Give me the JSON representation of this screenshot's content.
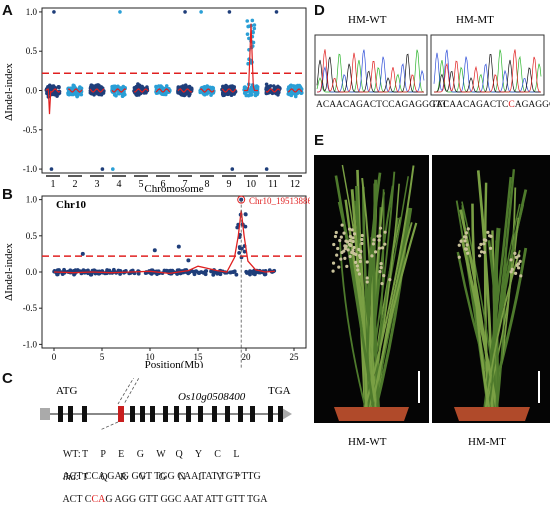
{
  "panels": {
    "A": "A",
    "B": "B",
    "C": "C",
    "D": "D",
    "E": "E"
  },
  "panelA": {
    "ylabel": "ΔIndel-index",
    "xlabel": "Chromosome",
    "yticks": [
      "1.0",
      "0.5",
      "0.0",
      "-0.5",
      "-1.0"
    ],
    "chromosomes": [
      "1",
      "2",
      "3",
      "4",
      "5",
      "6",
      "7",
      "8",
      "9",
      "10",
      "11",
      "12"
    ],
    "threshold": 0.22,
    "colors": {
      "dark": "#1f3e7a",
      "light": "#2a9fd6",
      "line": "#e02020"
    }
  },
  "panelB": {
    "title": "Chr10",
    "peak_label": "Chr10_19513886",
    "ylabel": "ΔIndel-index",
    "xlabel": "Position(Mb)",
    "yticks": [
      "1.0",
      "0.5",
      "0.0",
      "-0.5",
      "-1.0"
    ],
    "xticks": [
      "0",
      "5",
      "10",
      "15",
      "20",
      "25"
    ],
    "threshold": 0.22,
    "peak_position_mb": 19.5
  },
  "chart_data": [
    {
      "type": "scatter",
      "panel": "A",
      "xlabel": "Chromosome",
      "ylabel": "ΔIndel-index",
      "ylim": [
        -1.05,
        1.05
      ],
      "categories": [
        "1",
        "2",
        "3",
        "4",
        "5",
        "6",
        "7",
        "8",
        "9",
        "10",
        "11",
        "12"
      ],
      "threshold": 0.22,
      "peak": {
        "chromosome": "10",
        "value": 0.85
      }
    },
    {
      "type": "scatter",
      "panel": "B",
      "title": "Chr10",
      "xlabel": "Position(Mb)",
      "ylabel": "ΔIndel-index",
      "xlim": [
        0,
        25
      ],
      "ylim": [
        -1.05,
        1.05
      ],
      "threshold": 0.22,
      "annotations": [
        {
          "text": "Chr10_19513886",
          "x": 19.5,
          "y": 1.0
        }
      ],
      "smoothed_line": {
        "x": [
          0,
          2,
          4,
          6,
          8,
          10,
          12,
          14,
          15,
          16,
          17,
          18,
          18.8,
          19.2,
          19.5,
          19.8,
          20.2,
          21,
          22,
          23
        ],
        "y": [
          0.0,
          -0.01,
          0.0,
          -0.01,
          0.0,
          0.01,
          -0.02,
          0.02,
          0.08,
          0.05,
          0.02,
          0.0,
          0.2,
          0.5,
          0.85,
          0.5,
          0.15,
          0.03,
          0.0,
          0.01
        ]
      }
    }
  ],
  "panelC": {
    "start": "ATG",
    "end": "TGA",
    "gene": "Os10g0508400",
    "wt_label": "WT:",
    "wt_codons": "ACT CCA GAG GGT TGG CAA TAT TGT TTG",
    "wt_aa": "T     P     E     G     W    Q     Y     C     L",
    "mt_label": "lhd:",
    "mt_codons_a": "ACT C",
    "mt_codons_red": "CA",
    "mt_codons_b": "G AGG GTT GGC AAT ATT GTT TGA",
    "mt_aa": "T     Q     R     V     G     N     I      V     *"
  },
  "panelD": {
    "wt_title": "HM-WT",
    "mt_title": "HM-MT",
    "wt_seq": "ACAACAGACTCCAGAGGGTT",
    "mt_seq_a": "TACAACAGACTC",
    "mt_seq_red": "C",
    "mt_seq_b": "AGAGGGTT"
  },
  "panelE": {
    "wt_label": "HM-WT",
    "mt_label": "HM-MT"
  }
}
